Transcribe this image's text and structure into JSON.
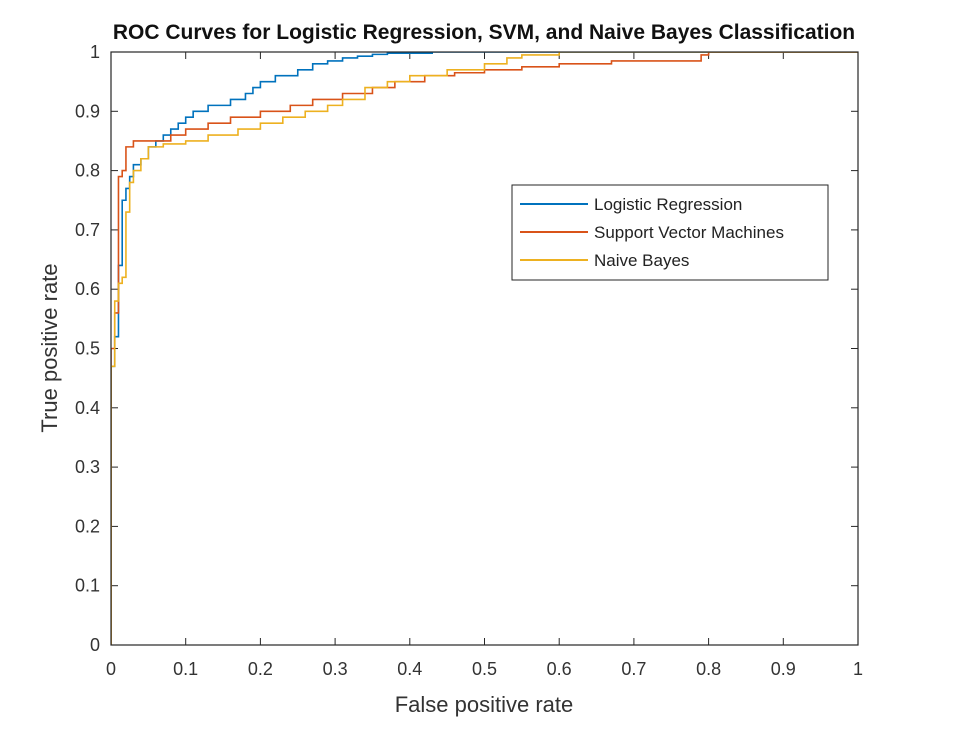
{
  "chart_data": {
    "type": "line",
    "title": "ROC Curves for Logistic Regression, SVM, and Naive Bayes Classification",
    "xlabel": "False positive rate",
    "ylabel": "True positive rate",
    "xlim": [
      0,
      1
    ],
    "ylim": [
      0,
      1
    ],
    "xticks": [
      "0",
      "0.1",
      "0.2",
      "0.3",
      "0.4",
      "0.5",
      "0.6",
      "0.7",
      "0.8",
      "0.9",
      "1"
    ],
    "yticks": [
      "0",
      "0.1",
      "0.2",
      "0.3",
      "0.4",
      "0.5",
      "0.6",
      "0.7",
      "0.8",
      "0.9",
      "1"
    ],
    "grid": false,
    "legend_position": "upper-right",
    "series": [
      {
        "name": "Logistic Regression",
        "color": "#0072BD",
        "x": [
          0,
          0,
          0.005,
          0.005,
          0.01,
          0.01,
          0.015,
          0.015,
          0.02,
          0.02,
          0.025,
          0.025,
          0.03,
          0.03,
          0.04,
          0.04,
          0.05,
          0.05,
          0.06,
          0.06,
          0.07,
          0.07,
          0.08,
          0.08,
          0.09,
          0.09,
          0.1,
          0.1,
          0.11,
          0.11,
          0.13,
          0.13,
          0.16,
          0.16,
          0.18,
          0.18,
          0.19,
          0.19,
          0.2,
          0.2,
          0.22,
          0.22,
          0.25,
          0.25,
          0.27,
          0.27,
          0.29,
          0.29,
          0.31,
          0.31,
          0.33,
          0.33,
          0.35,
          0.35,
          0.37,
          0.37,
          0.43,
          0.43,
          0.6,
          0.6,
          0.8,
          1
        ],
        "y": [
          0,
          0.47,
          0.47,
          0.52,
          0.52,
          0.64,
          0.64,
          0.75,
          0.75,
          0.77,
          0.77,
          0.79,
          0.79,
          0.81,
          0.81,
          0.82,
          0.82,
          0.84,
          0.84,
          0.85,
          0.85,
          0.86,
          0.86,
          0.87,
          0.87,
          0.88,
          0.88,
          0.89,
          0.89,
          0.9,
          0.9,
          0.91,
          0.91,
          0.92,
          0.92,
          0.93,
          0.93,
          0.94,
          0.94,
          0.95,
          0.95,
          0.96,
          0.96,
          0.97,
          0.97,
          0.98,
          0.98,
          0.985,
          0.985,
          0.99,
          0.99,
          0.993,
          0.993,
          0.996,
          0.996,
          0.998,
          0.998,
          1,
          1,
          1,
          1,
          1
        ]
      },
      {
        "name": "Support Vector Machines",
        "color": "#D95319",
        "x": [
          0,
          0,
          0.005,
          0.005,
          0.01,
          0.01,
          0.015,
          0.015,
          0.02,
          0.02,
          0.03,
          0.03,
          0.08,
          0.08,
          0.1,
          0.1,
          0.13,
          0.13,
          0.16,
          0.16,
          0.2,
          0.2,
          0.24,
          0.24,
          0.27,
          0.27,
          0.31,
          0.31,
          0.35,
          0.35,
          0.38,
          0.38,
          0.42,
          0.42,
          0.46,
          0.46,
          0.5,
          0.5,
          0.55,
          0.55,
          0.6,
          0.6,
          0.67,
          0.67,
          0.79,
          0.79,
          0.8,
          0.8,
          1
        ],
        "y": [
          0,
          0.5,
          0.5,
          0.56,
          0.56,
          0.79,
          0.79,
          0.8,
          0.8,
          0.84,
          0.84,
          0.85,
          0.85,
          0.86,
          0.86,
          0.87,
          0.87,
          0.88,
          0.88,
          0.89,
          0.89,
          0.9,
          0.9,
          0.91,
          0.91,
          0.92,
          0.92,
          0.93,
          0.93,
          0.94,
          0.94,
          0.95,
          0.95,
          0.96,
          0.96,
          0.965,
          0.965,
          0.97,
          0.97,
          0.975,
          0.975,
          0.98,
          0.98,
          0.985,
          0.985,
          0.995,
          0.995,
          1,
          1
        ]
      },
      {
        "name": "Naive Bayes",
        "color": "#EDB120",
        "x": [
          0,
          0,
          0.005,
          0.005,
          0.01,
          0.01,
          0.015,
          0.015,
          0.02,
          0.02,
          0.025,
          0.025,
          0.03,
          0.03,
          0.04,
          0.04,
          0.05,
          0.05,
          0.07,
          0.07,
          0.1,
          0.1,
          0.13,
          0.13,
          0.17,
          0.17,
          0.2,
          0.2,
          0.23,
          0.23,
          0.26,
          0.26,
          0.29,
          0.29,
          0.31,
          0.31,
          0.34,
          0.34,
          0.37,
          0.37,
          0.4,
          0.4,
          0.45,
          0.45,
          0.5,
          0.5,
          0.53,
          0.53,
          0.55,
          0.55,
          0.6,
          0.6,
          1
        ],
        "y": [
          0,
          0.47,
          0.47,
          0.58,
          0.58,
          0.61,
          0.61,
          0.62,
          0.62,
          0.73,
          0.73,
          0.78,
          0.78,
          0.8,
          0.8,
          0.82,
          0.82,
          0.84,
          0.84,
          0.845,
          0.845,
          0.85,
          0.85,
          0.86,
          0.86,
          0.87,
          0.87,
          0.88,
          0.88,
          0.89,
          0.89,
          0.9,
          0.9,
          0.91,
          0.91,
          0.92,
          0.92,
          0.94,
          0.94,
          0.95,
          0.95,
          0.96,
          0.96,
          0.97,
          0.97,
          0.98,
          0.98,
          0.99,
          0.99,
          0.995,
          0.995,
          1,
          1
        ]
      }
    ]
  }
}
